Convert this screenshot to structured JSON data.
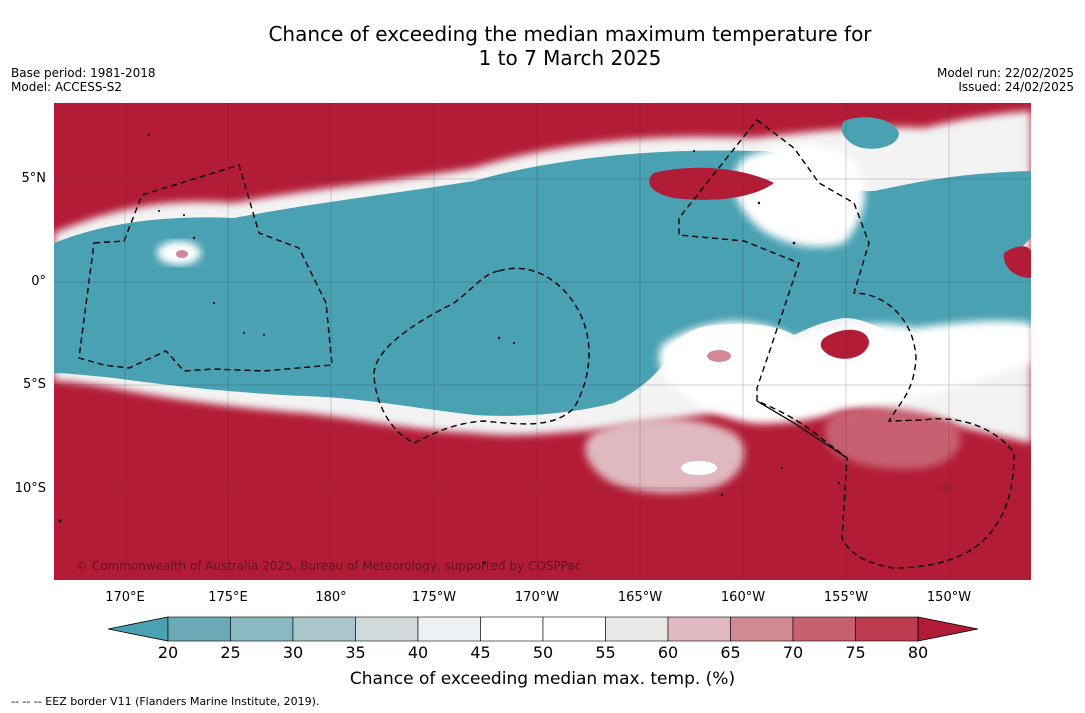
{
  "title_line1": "Chance of exceeding the median maximum temperature for",
  "title_line2": "1 to 7 March 2025",
  "meta_left": [
    "Base period: 1981-2018",
    "Model: ACCESS-S2"
  ],
  "meta_right": [
    "Model run: 22/02/2025",
    "Issued: 24/02/2025"
  ],
  "copyright": "© Commonwealth of Australia 2025, Bureau of Meteorology, supported by COSPPac",
  "lat_labels": [
    "5°N",
    "0°",
    "5°S",
    "10°S"
  ],
  "lon_labels": [
    "170°E",
    "175°E",
    "180°",
    "175°W",
    "170°W",
    "165°W",
    "160°W",
    "155°W",
    "150°W"
  ],
  "colorbar": {
    "ticks": [
      "20",
      "25",
      "30",
      "35",
      "40",
      "45",
      "50",
      "55",
      "60",
      "65",
      "70",
      "75",
      "80"
    ],
    "colors": [
      "#4ba0b2",
      "#6ba9b6",
      "#8ab8c3",
      "#abc6cb",
      "#d2d9da",
      "#eef1f3",
      "#ffffff",
      "#ffffff",
      "#e8e8e8",
      "#dfb9bf",
      "#d18a93",
      "#c76170",
      "#bd3c4f",
      "#b31c37"
    ],
    "title": "Chance of exceeding median max. temp. (%)"
  },
  "legend_text": "--  --  -- EEZ border V11 (Flanders Marine Institute, 2019).",
  "colors": {
    "low": "#4aa1b2",
    "high": "#b31c37",
    "neutral": "#ffffff"
  }
}
